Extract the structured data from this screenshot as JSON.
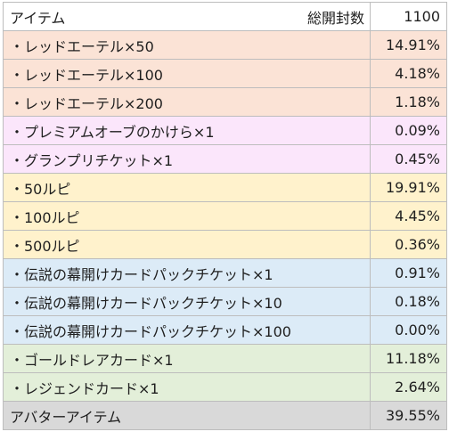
{
  "header": {
    "item_label": "アイテム",
    "total_label": "総開封数",
    "total_value": "1100"
  },
  "rows": [
    {
      "name": "・レッドエーテル×50",
      "value": "14.91%",
      "color": "#fbe3d6"
    },
    {
      "name": "・レッドエーテル×100",
      "value": "4.18%",
      "color": "#fbe3d6"
    },
    {
      "name": "・レッドエーテル×200",
      "value": "1.18%",
      "color": "#fbe3d6"
    },
    {
      "name": "・プレミアムオーブのかけら×1",
      "value": "0.09%",
      "color": "#fbe6fb"
    },
    {
      "name": "・グランプリチケット×1",
      "value": "0.45%",
      "color": "#fbe6fb"
    },
    {
      "name": "・50ルピ",
      "value": "19.91%",
      "color": "#fff2cc"
    },
    {
      "name": "・100ルピ",
      "value": "4.45%",
      "color": "#fff2cc"
    },
    {
      "name": "・500ルピ",
      "value": "0.36%",
      "color": "#fff2cc"
    },
    {
      "name": "・伝説の幕開けカードパックチケット×1",
      "value": "0.91%",
      "color": "#dcebf7"
    },
    {
      "name": "・伝説の幕開けカードパックチケット×10",
      "value": "0.18%",
      "color": "#dcebf7"
    },
    {
      "name": "・伝説の幕開けカードパックチケット×100",
      "value": "0.00%",
      "color": "#dcebf7"
    },
    {
      "name": "・ゴールドレアカード×1",
      "value": "11.18%",
      "color": "#e3efd9"
    },
    {
      "name": "・レジェンドカード×1",
      "value": "2.64%",
      "color": "#e3efd9"
    }
  ],
  "footer": {
    "name": "アバターアイテム",
    "value": "39.55%",
    "color": "#d9d9d9"
  }
}
